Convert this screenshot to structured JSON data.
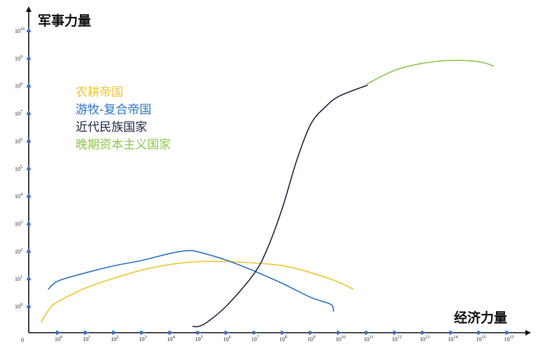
{
  "chart_data": {
    "type": "line",
    "xlabel": "经济力量",
    "ylabel": "军事力量",
    "origin_label": "0",
    "xticks": [
      {
        "base": "10",
        "exp": "0"
      },
      {
        "base": "10",
        "exp": "1"
      },
      {
        "base": "10",
        "exp": "2"
      },
      {
        "base": "10",
        "exp": "3"
      },
      {
        "base": "10",
        "exp": "4"
      },
      {
        "base": "10",
        "exp": "5"
      },
      {
        "base": "10",
        "exp": "6"
      },
      {
        "base": "10",
        "exp": "7"
      },
      {
        "base": "10",
        "exp": "8"
      },
      {
        "base": "10",
        "exp": "9"
      },
      {
        "base": "10",
        "exp": "10"
      },
      {
        "base": "10",
        "exp": "11"
      },
      {
        "base": "10",
        "exp": "12"
      },
      {
        "base": "10",
        "exp": "13"
      },
      {
        "base": "10",
        "exp": "14"
      },
      {
        "base": "10",
        "exp": "15"
      },
      {
        "base": "10",
        "exp": "15"
      }
    ],
    "yticks": [
      {
        "base": "10",
        "exp": "0"
      },
      {
        "base": "10",
        "exp": "1"
      },
      {
        "base": "10",
        "exp": "2"
      },
      {
        "base": "10",
        "exp": "3"
      },
      {
        "base": "10",
        "exp": "4"
      },
      {
        "base": "10",
        "exp": "5"
      },
      {
        "base": "10",
        "exp": "6"
      },
      {
        "base": "10",
        "exp": "7"
      },
      {
        "base": "10",
        "exp": "8"
      },
      {
        "base": "10",
        "exp": "9"
      },
      {
        "base": "10",
        "exp": "10"
      }
    ],
    "x_scale": "log10",
    "y_scale": "log10",
    "xlim_exp": [
      -1.05,
      16.3
    ],
    "ylim_exp": [
      -0.95,
      10.7
    ],
    "grid": false,
    "legend": {
      "placement": "upper-left"
    },
    "series": [
      {
        "name": "农耕帝国",
        "color": "#F4C430",
        "points": [
          [
            -0.6,
            -0.6
          ],
          [
            -0.3,
            -0.1
          ],
          [
            0,
            0.15
          ],
          [
            1,
            0.65
          ],
          [
            2,
            1.0
          ],
          [
            3,
            1.3
          ],
          [
            4,
            1.5
          ],
          [
            5,
            1.6
          ],
          [
            6,
            1.6
          ],
          [
            7,
            1.55
          ],
          [
            8,
            1.45
          ],
          [
            9,
            1.2
          ],
          [
            10,
            0.85
          ],
          [
            10.5,
            0.6
          ]
        ]
      },
      {
        "name": "游牧-复合帝国",
        "color": "#2E75C4",
        "points": [
          [
            -0.35,
            0.6
          ],
          [
            0,
            0.9
          ],
          [
            1,
            1.2
          ],
          [
            2,
            1.45
          ],
          [
            3,
            1.65
          ],
          [
            4,
            1.9
          ],
          [
            4.6,
            2.0
          ],
          [
            5,
            1.95
          ],
          [
            6,
            1.65
          ],
          [
            7,
            1.25
          ],
          [
            8,
            0.8
          ],
          [
            9,
            0.3
          ],
          [
            9.7,
            0.05
          ],
          [
            9.8,
            -0.2
          ]
        ]
      },
      {
        "name": "近代民族国家",
        "color": "#1F2A44",
        "points": [
          [
            4.8,
            -0.75
          ],
          [
            5,
            -0.75
          ],
          [
            5.3,
            -0.6
          ],
          [
            6,
            0
          ],
          [
            7,
            1.2
          ],
          [
            7.5,
            2.2
          ],
          [
            8,
            3.6
          ],
          [
            8.5,
            5.3
          ],
          [
            9,
            6.6
          ],
          [
            9.5,
            7.2
          ],
          [
            10,
            7.6
          ],
          [
            11,
            8.0
          ]
        ]
      },
      {
        "name": "晚期资本主义国家",
        "color": "#8CC850",
        "points": [
          [
            11,
            8.05
          ],
          [
            12,
            8.55
          ],
          [
            13,
            8.8
          ],
          [
            14,
            8.9
          ],
          [
            15,
            8.85
          ],
          [
            15.5,
            8.7
          ]
        ]
      }
    ]
  }
}
